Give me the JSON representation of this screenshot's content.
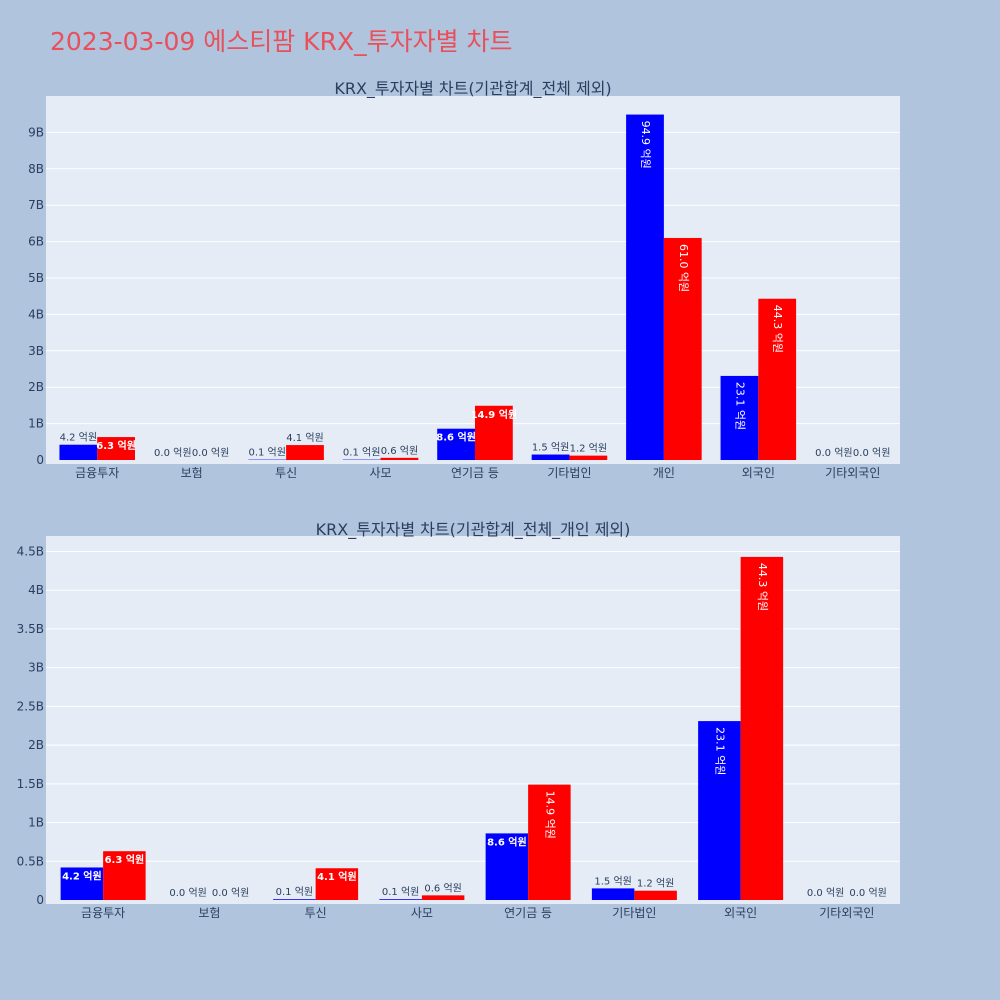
{
  "page": {
    "title": "2023-03-09 에스티팜 KRX_투자자별 차트"
  },
  "colors": {
    "background": "#b0c4de",
    "plot_bg": "#e5ecf6",
    "grid": "#ffffff",
    "buy": "#0000ff",
    "sell": "#ff0000",
    "title": "#e8505b",
    "text": "#2a3f5f"
  },
  "chart_data": [
    {
      "type": "bar",
      "title": "KRX_투자자별 차트(기관합계_전체 제외)",
      "categories": [
        "금융투자",
        "보험",
        "투신",
        "사모",
        "연기금 등",
        "기타법인",
        "개인",
        "외국인",
        "기타외국인"
      ],
      "ylim": [
        0,
        10000000000
      ],
      "yticks": [
        0,
        1000000000,
        2000000000,
        3000000000,
        4000000000,
        5000000000,
        6000000000,
        7000000000,
        8000000000,
        9000000000
      ],
      "ytick_labels": [
        "0",
        "1B",
        "2B",
        "3B",
        "4B",
        "5B",
        "6B",
        "7B",
        "8B",
        "9B"
      ],
      "series": [
        {
          "color": "#0000ff",
          "values": [
            420000000,
            0,
            10000000,
            10000000,
            860000000,
            150000000,
            9490000000,
            2310000000,
            0
          ],
          "labels": [
            "4.2 억원",
            "0.0 억원",
            "0.1 억원",
            "0.1 억원",
            "8.6 억원",
            "1.5 억원",
            "94.9 억원",
            "23.1 억원",
            "0.0 억원"
          ]
        },
        {
          "color": "#ff0000",
          "values": [
            630000000,
            0,
            410000000,
            60000000,
            1490000000,
            120000000,
            6100000000,
            4430000000,
            0
          ],
          "labels": [
            "6.3 억원",
            "0.0 억원",
            "4.1 억원",
            "0.6 억원",
            "14.9 억원",
            "1.2 억원",
            "61.0 억원",
            "44.3 억원",
            "0.0 억원"
          ]
        }
      ],
      "grid": true
    },
    {
      "type": "bar",
      "title": "KRX_투자자별 차트(기관합계_전체_개인 제외)",
      "categories": [
        "금융투자",
        "보험",
        "투신",
        "사모",
        "연기금 등",
        "기타법인",
        "외국인",
        "기타외국인"
      ],
      "ylim": [
        0,
        4700000000
      ],
      "yticks": [
        0,
        500000000,
        1000000000,
        1500000000,
        2000000000,
        2500000000,
        3000000000,
        3500000000,
        4000000000,
        4500000000
      ],
      "ytick_labels": [
        "0",
        "0.5B",
        "1B",
        "1.5B",
        "2B",
        "2.5B",
        "3B",
        "3.5B",
        "4B",
        "4.5B"
      ],
      "series": [
        {
          "color": "#0000ff",
          "values": [
            420000000,
            0,
            10000000,
            10000000,
            860000000,
            150000000,
            2310000000,
            0
          ],
          "labels": [
            "4.2 억원",
            "0.0 억원",
            "0.1 억원",
            "0.1 억원",
            "8.6 억원",
            "1.5 억원",
            "23.1 억원",
            "0.0 억원"
          ]
        },
        {
          "color": "#ff0000",
          "values": [
            630000000,
            0,
            410000000,
            60000000,
            1490000000,
            120000000,
            4430000000,
            0
          ],
          "labels": [
            "6.3 억원",
            "0.0 억원",
            "4.1 억원",
            "0.6 억원",
            "14.9 억원",
            "1.2 억원",
            "44.3 억원",
            "0.0 억원"
          ]
        }
      ],
      "grid": true
    }
  ]
}
